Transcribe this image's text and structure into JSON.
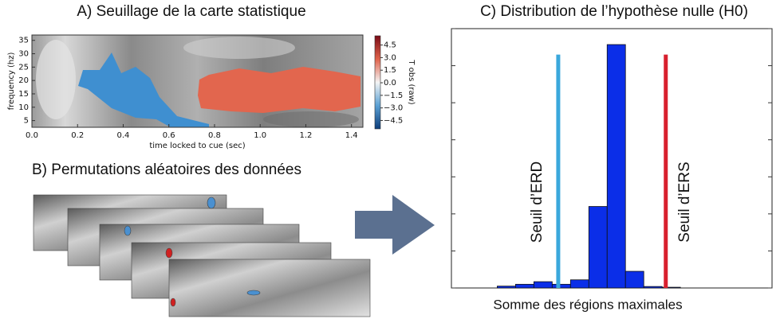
{
  "chart_data": [
    {
      "type": "heatmap",
      "title": "A) Seuillage de la carte statistique",
      "xlabel": "time locked to cue (sec)",
      "ylabel": "frequency (hz)",
      "xlim": [
        0,
        1.45
      ],
      "xticks": [
        {
          "value": 0,
          "label": "0.0"
        },
        {
          "value": 0.2,
          "label": "0.2"
        },
        {
          "value": 0.4,
          "label": "0.4"
        },
        {
          "value": 0.6,
          "label": "0.6"
        },
        {
          "value": 0.8,
          "label": "0.8"
        },
        {
          "value": 1,
          "label": "1.0"
        },
        {
          "value": 1.2,
          "label": "1.2"
        },
        {
          "value": 1.4,
          "label": "1.4"
        }
      ],
      "ylim": [
        2.5,
        37
      ],
      "yticks": [
        5,
        10,
        15,
        20,
        25,
        30,
        35
      ],
      "colorbar": {
        "label": "T obs (raw)",
        "lim": [
          -5.5,
          5.6
        ],
        "ticks": [
          {
            "value": 4.5,
            "label": "4.5"
          },
          {
            "value": 3,
            "label": "3.0"
          },
          {
            "value": 1.5,
            "label": "1.5"
          },
          {
            "value": 0,
            "label": "0.0"
          },
          {
            "value": -1.5,
            "label": "−1.5"
          },
          {
            "value": -3,
            "label": "−3.0"
          },
          {
            "value": -4.5,
            "label": "−4.5"
          }
        ]
      }
    },
    {
      "type": "histogram",
      "title": "C) Distribution de l’hypothèse nulle (H0)",
      "xlabel": "Somme des régions maximales",
      "xlim": [
        -2.5,
        15
      ],
      "ylim": [
        0,
        7
      ],
      "yticks": [
        0,
        1,
        2,
        3,
        4,
        5,
        6,
        7
      ],
      "bins": [
        0,
        1,
        2,
        3,
        4,
        5,
        6,
        7,
        8,
        9,
        10
      ],
      "values": [
        0.05,
        0.1,
        0.17,
        0.1,
        0.22,
        2.2,
        6.57,
        0.45,
        0.04,
        0.02
      ],
      "color": "#0b2ee8",
      "thresholds": [
        {
          "label": "Seuil d’ERD",
          "x": 3.33,
          "height": 6.3,
          "color": "#3aa8dc"
        },
        {
          "label": "Seuil d’ERS",
          "x": 9.2,
          "height": 6.3,
          "color": "#d8202e"
        }
      ]
    }
  ],
  "permutations": {
    "title": "B) Permutations aléatoires des données"
  }
}
